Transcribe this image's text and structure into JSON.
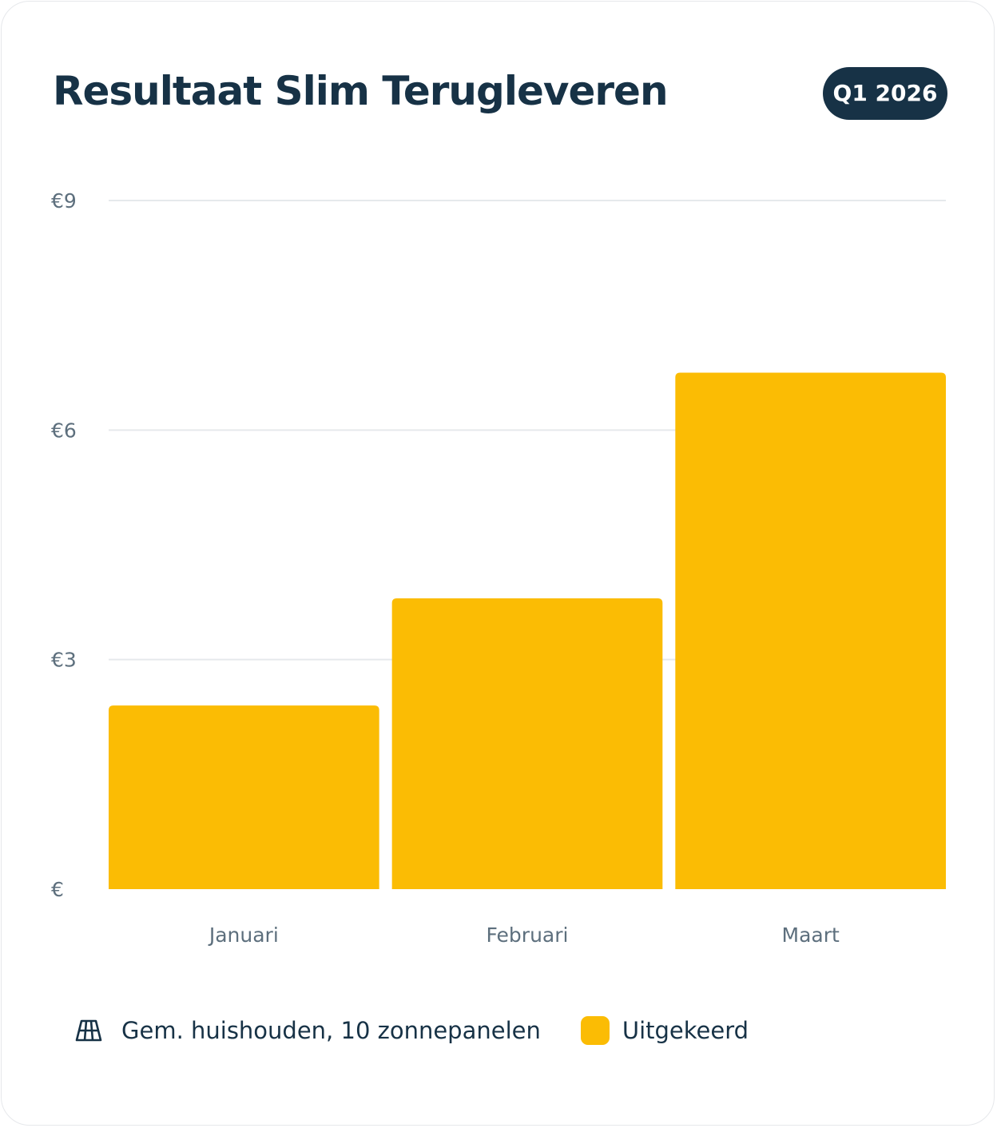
{
  "header": {
    "title": "Resultaat Slim Terugleveren",
    "period_badge": "Q1 2026"
  },
  "colors": {
    "bar": "#fbbc04",
    "text_dark": "#173246",
    "axis_text": "#5d6f7d",
    "grid": "#e6e9ec"
  },
  "legend": {
    "context_icon": "solar-panel-icon",
    "context_label": "Gem. huishouden, 10 zonnepanelen",
    "series_label": "Uitgekeerd"
  },
  "chart_data": {
    "type": "bar",
    "title": "Resultaat Slim Terugleveren",
    "categories": [
      "Januari",
      "Februari",
      "Maart"
    ],
    "values": [
      2.4,
      3.8,
      6.75
    ],
    "ylim": [
      0,
      9
    ],
    "yticks": [
      0,
      3,
      6,
      9
    ],
    "ytick_labels": [
      "€",
      "€3",
      "€6",
      "€9"
    ],
    "xlabel": "",
    "ylabel": "",
    "grid": true,
    "legend_position": "bottom"
  }
}
